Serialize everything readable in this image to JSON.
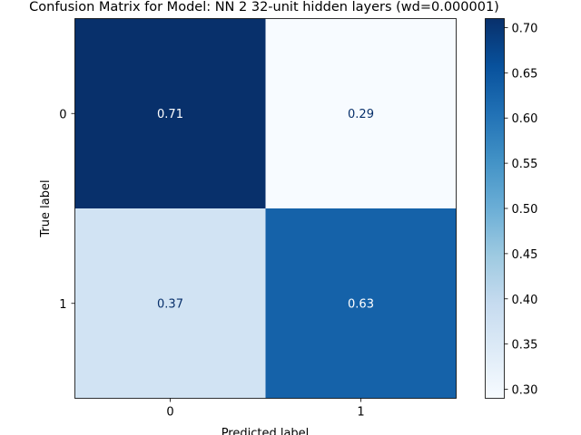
{
  "chart_data": {
    "type": "heatmap",
    "title": "Confusion Matrix for Model: NN 2 32-unit hidden layers (wd=0.000001)",
    "xlabel": "Predicted label",
    "ylabel": "True label",
    "x_categories": [
      "0",
      "1"
    ],
    "y_categories": [
      "0",
      "1"
    ],
    "values": [
      [
        0.71,
        0.29
      ],
      [
        0.37,
        0.63
      ]
    ],
    "colormap": "Blues",
    "colorbar": {
      "range": [
        0.29,
        0.71
      ],
      "ticks": [
        0.3,
        0.35,
        0.4,
        0.45,
        0.5,
        0.55,
        0.6,
        0.65,
        0.7
      ],
      "tick_labels": [
        "0.30",
        "0.35",
        "0.40",
        "0.45",
        "0.50",
        "0.55",
        "0.60",
        "0.65",
        "0.70"
      ]
    },
    "colors": {
      "low": "#f7fbff",
      "mid": "#6baed6",
      "high": "#08306b",
      "text_on_dark": "#ffffff",
      "text_on_light": "#08306b"
    }
  }
}
